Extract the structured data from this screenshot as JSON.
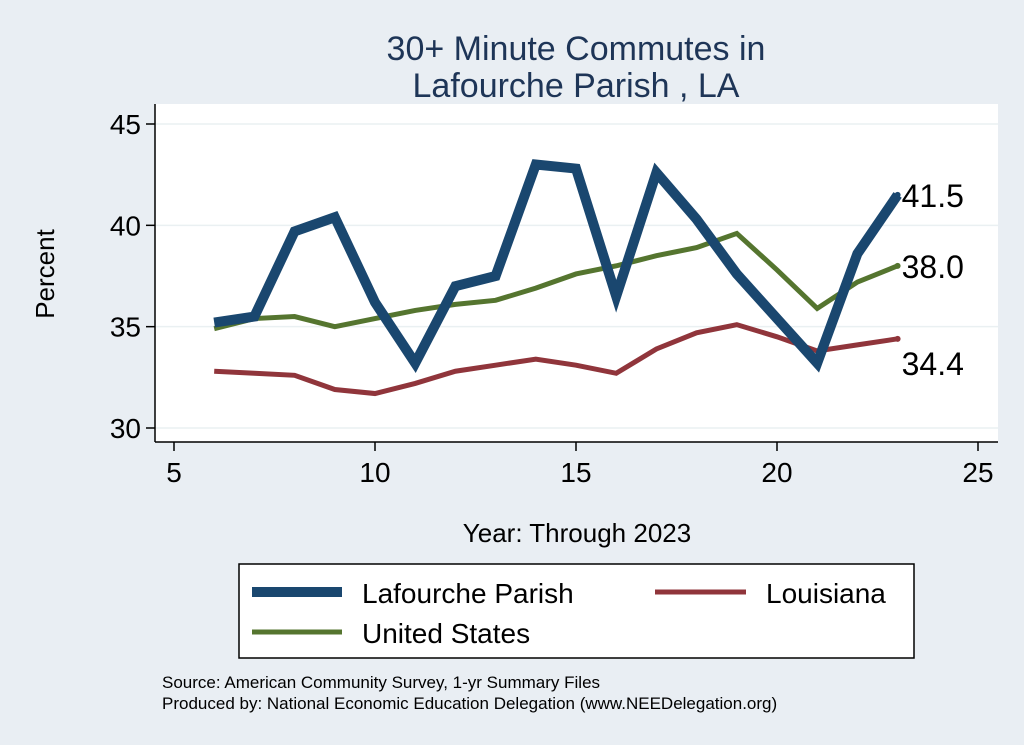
{
  "chart_data": {
    "type": "line",
    "title": [
      "30+ Minute Commutes in",
      "Lafourche Parish , LA"
    ],
    "xlabel": "Year: Through 2023",
    "ylabel": "Percent",
    "xlim": [
      5,
      25
    ],
    "ylim": [
      30,
      45
    ],
    "xticks": [
      5,
      10,
      15,
      20,
      25
    ],
    "yticks": [
      30,
      35,
      40,
      45
    ],
    "grid": true,
    "series": [
      {
        "name": "Lafourche Parish",
        "color": "#1a476f",
        "x": [
          6,
          7,
          8,
          9,
          10,
          11,
          12,
          13,
          14,
          15,
          16,
          17,
          18,
          19,
          20,
          21,
          22,
          23
        ],
        "values": [
          35.2,
          35.5,
          39.7,
          40.4,
          36.2,
          33.2,
          37.0,
          37.5,
          43.0,
          42.8,
          36.5,
          42.6,
          40.3,
          37.6,
          35.4,
          33.2,
          38.6,
          41.5
        ],
        "end_label": "41.5"
      },
      {
        "name": "Louisiana",
        "color": "#90353b",
        "x": [
          6,
          7,
          8,
          9,
          10,
          11,
          12,
          13,
          14,
          15,
          16,
          17,
          18,
          19,
          20,
          21,
          22,
          23
        ],
        "values": [
          32.8,
          32.7,
          32.6,
          31.9,
          31.7,
          32.2,
          32.8,
          33.1,
          33.4,
          33.1,
          32.7,
          33.9,
          34.7,
          35.1,
          34.5,
          33.8,
          34.1,
          34.4
        ],
        "end_label": "34.4"
      },
      {
        "name": "United States",
        "color": "#55752f",
        "x": [
          6,
          7,
          8,
          9,
          10,
          11,
          12,
          13,
          14,
          15,
          16,
          17,
          18,
          19,
          20,
          21,
          22,
          23
        ],
        "values": [
          34.9,
          35.4,
          35.5,
          35.0,
          35.4,
          35.8,
          36.1,
          36.3,
          36.9,
          37.6,
          38.0,
          38.5,
          38.9,
          39.6,
          37.8,
          35.9,
          37.2,
          38.0
        ],
        "end_label": "38.0"
      }
    ],
    "legend": {
      "placement": "bottom",
      "entries": [
        "Lafourche Parish",
        "Louisiana",
        "United States"
      ]
    },
    "source": [
      "Source: American Community Survey, 1-yr Summary Files",
      "Produced by: National Economic Education Delegation (www.NEEDelegation.org)"
    ]
  }
}
